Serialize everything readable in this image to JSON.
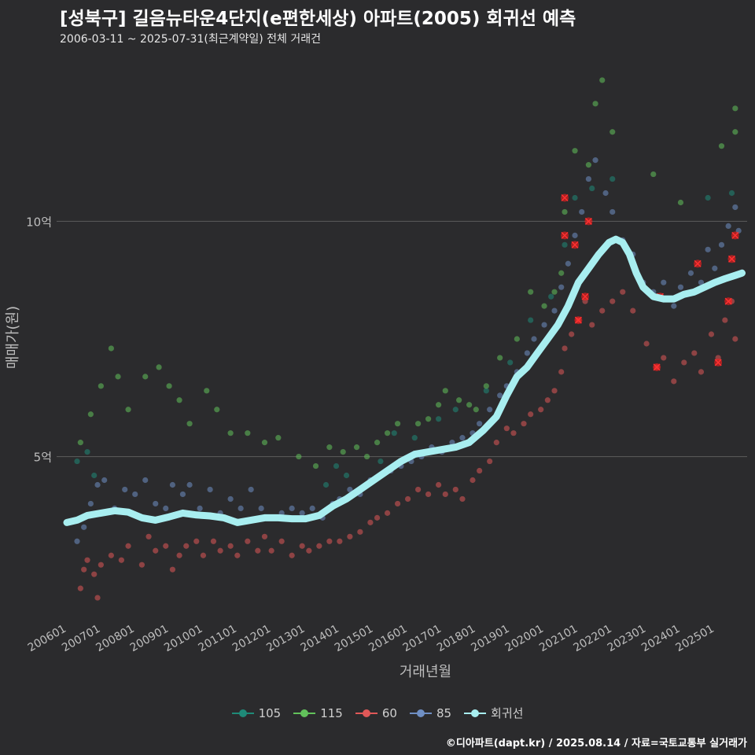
{
  "title": "[성북구] 길음뉴타운4단지(e편한세상) 아파트(2005) 회귀선 예측",
  "subtitle": "2006-03-11 ~ 2025-07-31(최근계약일) 전체 거래건",
  "source": "©디아파트(dapt.kr) / 2025.08.14 / 자료=국토교통부 실거래가",
  "colors": {
    "background": "#2b2b2d",
    "grid": "#5c5c5c",
    "s105": "#1f8a78",
    "s115": "#62c25b",
    "s60": "#e05858",
    "s85": "#6f8fc4",
    "regression": "#a8eef0",
    "highlight": "#ff1a1a"
  },
  "chart_data": {
    "type": "scatter",
    "xlabel": "거래년월",
    "ylabel": "매매가(원)",
    "xlim": [
      2005.7,
      2025.95
    ],
    "ylim": [
      1.5,
      13.5
    ],
    "y_unit": "억",
    "yticks": [
      {
        "value": 5,
        "label": "5억"
      },
      {
        "value": 10,
        "label": "10억"
      }
    ],
    "xticks": [
      "200601",
      "200701",
      "200801",
      "200901",
      "201001",
      "201101",
      "201201",
      "201301",
      "201401",
      "201501",
      "201601",
      "201701",
      "201801",
      "201901",
      "202001",
      "202101",
      "202201",
      "202301",
      "202401",
      "202501"
    ],
    "legend": [
      "105",
      "115",
      "60",
      "85",
      "회귀선"
    ],
    "series": [
      {
        "name": "60",
        "color": "#e05858",
        "points": [
          [
            2006.4,
            2.2
          ],
          [
            2006.5,
            2.6
          ],
          [
            2006.6,
            2.8
          ],
          [
            2006.8,
            2.5
          ],
          [
            2006.9,
            2.0
          ],
          [
            2007.0,
            2.7
          ],
          [
            2007.3,
            2.9
          ],
          [
            2007.6,
            2.8
          ],
          [
            2007.8,
            3.1
          ],
          [
            2008.2,
            2.7
          ],
          [
            2008.4,
            3.3
          ],
          [
            2008.6,
            3.0
          ],
          [
            2008.9,
            3.1
          ],
          [
            2009.1,
            2.6
          ],
          [
            2009.3,
            2.9
          ],
          [
            2009.5,
            3.1
          ],
          [
            2009.8,
            3.2
          ],
          [
            2010.0,
            2.9
          ],
          [
            2010.3,
            3.2
          ],
          [
            2010.5,
            3.0
          ],
          [
            2010.8,
            3.1
          ],
          [
            2011.0,
            2.9
          ],
          [
            2011.3,
            3.2
          ],
          [
            2011.6,
            3.0
          ],
          [
            2011.8,
            3.3
          ],
          [
            2012.0,
            3.0
          ],
          [
            2012.3,
            3.2
          ],
          [
            2012.6,
            2.9
          ],
          [
            2012.9,
            3.1
          ],
          [
            2013.1,
            3.0
          ],
          [
            2013.4,
            3.1
          ],
          [
            2013.7,
            3.2
          ],
          [
            2014.0,
            3.2
          ],
          [
            2014.3,
            3.3
          ],
          [
            2014.6,
            3.4
          ],
          [
            2014.9,
            3.6
          ],
          [
            2015.1,
            3.7
          ],
          [
            2015.4,
            3.8
          ],
          [
            2015.7,
            4.0
          ],
          [
            2016.0,
            4.1
          ],
          [
            2016.3,
            4.3
          ],
          [
            2016.6,
            4.2
          ],
          [
            2016.9,
            4.4
          ],
          [
            2017.1,
            4.2
          ],
          [
            2017.4,
            4.3
          ],
          [
            2017.6,
            4.1
          ],
          [
            2017.9,
            4.5
          ],
          [
            2018.1,
            4.7
          ],
          [
            2018.4,
            4.9
          ],
          [
            2018.6,
            5.3
          ],
          [
            2018.9,
            5.6
          ],
          [
            2019.1,
            5.5
          ],
          [
            2019.4,
            5.7
          ],
          [
            2019.6,
            5.9
          ],
          [
            2019.9,
            6.0
          ],
          [
            2020.1,
            6.2
          ],
          [
            2020.3,
            6.4
          ],
          [
            2020.5,
            6.8
          ],
          [
            2020.6,
            7.3
          ],
          [
            2020.8,
            7.6
          ],
          [
            2021.0,
            7.9
          ],
          [
            2021.2,
            8.3
          ],
          [
            2021.4,
            7.8
          ],
          [
            2021.7,
            8.1
          ],
          [
            2022.0,
            8.3
          ],
          [
            2022.3,
            8.5
          ],
          [
            2022.6,
            8.1
          ],
          [
            2023.0,
            7.4
          ],
          [
            2023.3,
            6.9
          ],
          [
            2023.5,
            7.1
          ],
          [
            2023.8,
            6.6
          ],
          [
            2024.1,
            7.0
          ],
          [
            2024.4,
            7.2
          ],
          [
            2024.6,
            6.8
          ],
          [
            2024.9,
            7.6
          ],
          [
            2025.1,
            7.1
          ],
          [
            2025.3,
            7.9
          ],
          [
            2025.5,
            8.3
          ],
          [
            2025.6,
            7.5
          ]
        ]
      },
      {
        "name": "85",
        "color": "#6f8fc4",
        "points": [
          [
            2006.3,
            3.2
          ],
          [
            2006.5,
            3.5
          ],
          [
            2006.7,
            4.0
          ],
          [
            2006.9,
            4.4
          ],
          [
            2007.1,
            4.5
          ],
          [
            2007.4,
            3.9
          ],
          [
            2007.7,
            4.3
          ],
          [
            2008.0,
            4.2
          ],
          [
            2008.3,
            4.5
          ],
          [
            2008.6,
            4.0
          ],
          [
            2008.9,
            3.9
          ],
          [
            2009.1,
            4.4
          ],
          [
            2009.4,
            4.2
          ],
          [
            2009.6,
            4.4
          ],
          [
            2009.9,
            3.9
          ],
          [
            2010.2,
            4.3
          ],
          [
            2010.5,
            3.8
          ],
          [
            2010.8,
            4.1
          ],
          [
            2011.1,
            3.9
          ],
          [
            2011.4,
            4.3
          ],
          [
            2011.7,
            3.9
          ],
          [
            2012.0,
            3.7
          ],
          [
            2012.3,
            3.8
          ],
          [
            2012.6,
            3.9
          ],
          [
            2012.9,
            3.8
          ],
          [
            2013.2,
            3.9
          ],
          [
            2013.5,
            3.7
          ],
          [
            2013.8,
            4.0
          ],
          [
            2014.0,
            4.1
          ],
          [
            2014.3,
            4.3
          ],
          [
            2014.6,
            4.2
          ],
          [
            2014.9,
            4.5
          ],
          [
            2015.2,
            4.6
          ],
          [
            2015.5,
            4.7
          ],
          [
            2015.8,
            4.8
          ],
          [
            2016.1,
            4.9
          ],
          [
            2016.4,
            5.0
          ],
          [
            2016.7,
            5.2
          ],
          [
            2017.0,
            5.1
          ],
          [
            2017.3,
            5.3
          ],
          [
            2017.6,
            5.4
          ],
          [
            2017.9,
            5.5
          ],
          [
            2018.1,
            5.7
          ],
          [
            2018.4,
            6.0
          ],
          [
            2018.7,
            6.3
          ],
          [
            2018.9,
            6.5
          ],
          [
            2019.2,
            6.8
          ],
          [
            2019.5,
            7.2
          ],
          [
            2019.7,
            7.5
          ],
          [
            2020.0,
            7.8
          ],
          [
            2020.3,
            8.1
          ],
          [
            2020.5,
            8.6
          ],
          [
            2020.7,
            9.1
          ],
          [
            2020.9,
            9.7
          ],
          [
            2021.1,
            10.2
          ],
          [
            2021.3,
            10.9
          ],
          [
            2021.5,
            11.3
          ],
          [
            2021.8,
            10.6
          ],
          [
            2022.0,
            10.2
          ],
          [
            2022.3,
            9.6
          ],
          [
            2022.6,
            9.3
          ],
          [
            2022.9,
            8.7
          ],
          [
            2023.2,
            8.5
          ],
          [
            2023.5,
            8.7
          ],
          [
            2023.8,
            8.2
          ],
          [
            2024.0,
            8.6
          ],
          [
            2024.3,
            8.9
          ],
          [
            2024.6,
            8.7
          ],
          [
            2024.8,
            9.4
          ],
          [
            2025.0,
            9.0
          ],
          [
            2025.2,
            9.5
          ],
          [
            2025.4,
            9.9
          ],
          [
            2025.6,
            10.3
          ],
          [
            2025.7,
            9.8
          ]
        ]
      },
      {
        "name": "105",
        "color": "#1f8a78",
        "points": [
          [
            2006.3,
            4.9
          ],
          [
            2006.6,
            5.1
          ],
          [
            2006.8,
            4.6
          ],
          [
            2013.6,
            4.4
          ],
          [
            2013.9,
            4.8
          ],
          [
            2014.2,
            4.6
          ],
          [
            2015.2,
            4.9
          ],
          [
            2015.6,
            5.5
          ],
          [
            2016.2,
            5.4
          ],
          [
            2016.9,
            5.8
          ],
          [
            2017.4,
            6.0
          ],
          [
            2018.3,
            6.4
          ],
          [
            2019.0,
            7.0
          ],
          [
            2019.6,
            7.9
          ],
          [
            2020.2,
            8.4
          ],
          [
            2020.6,
            9.5
          ],
          [
            2020.9,
            10.5
          ],
          [
            2021.4,
            10.7
          ],
          [
            2022.0,
            10.9
          ],
          [
            2024.8,
            10.5
          ],
          [
            2025.5,
            10.6
          ]
        ]
      },
      {
        "name": "115",
        "color": "#62c25b",
        "points": [
          [
            2006.4,
            5.3
          ],
          [
            2006.7,
            5.9
          ],
          [
            2007.0,
            6.5
          ],
          [
            2007.3,
            7.3
          ],
          [
            2007.5,
            6.7
          ],
          [
            2007.8,
            6.0
          ],
          [
            2008.3,
            6.7
          ],
          [
            2008.7,
            6.9
          ],
          [
            2009.0,
            6.5
          ],
          [
            2009.3,
            6.2
          ],
          [
            2009.6,
            5.7
          ],
          [
            2010.1,
            6.4
          ],
          [
            2010.4,
            6.0
          ],
          [
            2010.8,
            5.5
          ],
          [
            2011.3,
            5.5
          ],
          [
            2011.8,
            5.3
          ],
          [
            2012.2,
            5.4
          ],
          [
            2012.8,
            5.0
          ],
          [
            2013.3,
            4.8
          ],
          [
            2013.7,
            5.2
          ],
          [
            2014.1,
            5.1
          ],
          [
            2014.5,
            5.2
          ],
          [
            2014.8,
            5.0
          ],
          [
            2015.1,
            5.3
          ],
          [
            2015.4,
            5.5
          ],
          [
            2015.7,
            5.7
          ],
          [
            2016.3,
            5.7
          ],
          [
            2016.6,
            5.8
          ],
          [
            2016.9,
            6.1
          ],
          [
            2017.1,
            6.4
          ],
          [
            2017.5,
            6.2
          ],
          [
            2017.8,
            6.1
          ],
          [
            2018.0,
            6.0
          ],
          [
            2018.3,
            6.5
          ],
          [
            2018.7,
            7.1
          ],
          [
            2019.2,
            7.5
          ],
          [
            2019.6,
            8.5
          ],
          [
            2020.0,
            8.2
          ],
          [
            2020.3,
            8.5
          ],
          [
            2020.5,
            8.9
          ],
          [
            2020.6,
            10.2
          ],
          [
            2020.9,
            11.5
          ],
          [
            2021.3,
            11.2
          ],
          [
            2021.5,
            12.5
          ],
          [
            2021.7,
            13.0
          ],
          [
            2022.0,
            11.9
          ],
          [
            2023.2,
            11.0
          ],
          [
            2024.0,
            10.4
          ],
          [
            2025.2,
            11.6
          ],
          [
            2025.6,
            12.4
          ],
          [
            2025.6,
            11.9
          ]
        ]
      },
      {
        "name": "highlight",
        "color": "#ff1a1a",
        "points": [
          [
            2020.6,
            10.5
          ],
          [
            2020.6,
            9.7
          ],
          [
            2020.9,
            9.5
          ],
          [
            2021.0,
            7.9
          ],
          [
            2021.2,
            8.4
          ],
          [
            2021.3,
            10.0
          ],
          [
            2023.3,
            6.9
          ],
          [
            2023.4,
            8.4
          ],
          [
            2024.5,
            9.1
          ],
          [
            2025.1,
            7.0
          ],
          [
            2025.4,
            8.3
          ],
          [
            2025.5,
            9.2
          ],
          [
            2025.6,
            9.7
          ]
        ]
      }
    ],
    "regression": {
      "name": "회귀선",
      "color": "#a8eef0",
      "points": [
        [
          2006.0,
          3.6
        ],
        [
          2006.3,
          3.65
        ],
        [
          2006.6,
          3.75
        ],
        [
          2007.0,
          3.8
        ],
        [
          2007.4,
          3.85
        ],
        [
          2007.8,
          3.82
        ],
        [
          2008.2,
          3.7
        ],
        [
          2008.6,
          3.65
        ],
        [
          2009.0,
          3.72
        ],
        [
          2009.4,
          3.8
        ],
        [
          2009.8,
          3.76
        ],
        [
          2010.2,
          3.74
        ],
        [
          2010.6,
          3.7
        ],
        [
          2011.0,
          3.6
        ],
        [
          2011.4,
          3.65
        ],
        [
          2011.8,
          3.7
        ],
        [
          2012.2,
          3.7
        ],
        [
          2012.6,
          3.68
        ],
        [
          2013.0,
          3.68
        ],
        [
          2013.4,
          3.75
        ],
        [
          2013.8,
          3.95
        ],
        [
          2014.2,
          4.1
        ],
        [
          2014.6,
          4.3
        ],
        [
          2015.0,
          4.5
        ],
        [
          2015.4,
          4.7
        ],
        [
          2015.8,
          4.9
        ],
        [
          2016.2,
          5.05
        ],
        [
          2016.6,
          5.1
        ],
        [
          2017.0,
          5.15
        ],
        [
          2017.4,
          5.2
        ],
        [
          2017.8,
          5.3
        ],
        [
          2018.2,
          5.55
        ],
        [
          2018.6,
          5.85
        ],
        [
          2018.9,
          6.3
        ],
        [
          2019.2,
          6.7
        ],
        [
          2019.5,
          6.9
        ],
        [
          2019.8,
          7.2
        ],
        [
          2020.1,
          7.5
        ],
        [
          2020.4,
          7.8
        ],
        [
          2020.7,
          8.2
        ],
        [
          2021.0,
          8.7
        ],
        [
          2021.3,
          9.0
        ],
        [
          2021.6,
          9.3
        ],
        [
          2021.9,
          9.55
        ],
        [
          2022.1,
          9.62
        ],
        [
          2022.3,
          9.55
        ],
        [
          2022.5,
          9.3
        ],
        [
          2022.7,
          8.9
        ],
        [
          2022.9,
          8.6
        ],
        [
          2023.2,
          8.4
        ],
        [
          2023.5,
          8.35
        ],
        [
          2023.8,
          8.35
        ],
        [
          2024.1,
          8.45
        ],
        [
          2024.4,
          8.5
        ],
        [
          2024.7,
          8.6
        ],
        [
          2025.0,
          8.7
        ],
        [
          2025.3,
          8.78
        ],
        [
          2025.6,
          8.85
        ],
        [
          2025.8,
          8.9
        ]
      ]
    }
  },
  "legend_items": [
    {
      "label": "105",
      "color": "#1f8a78"
    },
    {
      "label": "115",
      "color": "#62c25b"
    },
    {
      "label": "60",
      "color": "#e05858"
    },
    {
      "label": "85",
      "color": "#6f8fc4"
    },
    {
      "label": "회귀선",
      "color": "#a8eef0"
    }
  ]
}
